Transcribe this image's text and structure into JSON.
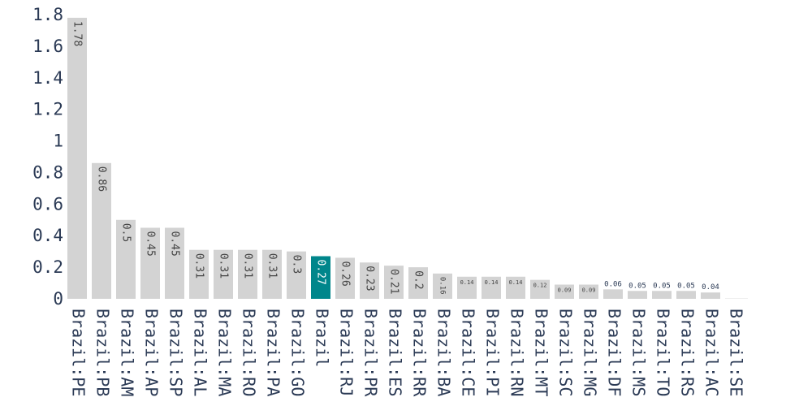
{
  "chart_data": {
    "type": "bar",
    "title": "",
    "xlabel": "",
    "ylabel": "",
    "ylim": [
      0,
      1.8
    ],
    "yticks": [
      0,
      0.2,
      0.4,
      0.6,
      0.8,
      1,
      1.2,
      1.4,
      1.6,
      1.8
    ],
    "ytick_labels": [
      "0",
      "0.2",
      "0.4",
      "0.6",
      "0.8",
      "1",
      "1.2",
      "1.4",
      "1.6",
      "1.8"
    ],
    "grid": false,
    "highlight_category": "Brazil",
    "colors": {
      "default_bar": "#d3d3d3",
      "highlight_bar": "#00868b",
      "axis_text": "#2b3a55"
    },
    "categories": [
      "Brazil:PE",
      "Brazil:PB",
      "Brazil:AM",
      "Brazil:AP",
      "Brazil:SP",
      "Brazil:AL",
      "Brazil:MA",
      "Brazil:RO",
      "Brazil:PA",
      "Brazil:GO",
      "Brazil",
      "Brazil:RJ",
      "Brazil:PR",
      "Brazil:ES",
      "Brazil:RR",
      "Brazil:BA",
      "Brazil:CE",
      "Brazil:PI",
      "Brazil:RN",
      "Brazil:MT",
      "Brazil:SC",
      "Brazil:MG",
      "Brazil:DF",
      "Brazil:MS",
      "Brazil:TO",
      "Brazil:RS",
      "Brazil:AC",
      "Brazil:SE"
    ],
    "values": [
      1.78,
      0.86,
      0.5,
      0.45,
      0.45,
      0.31,
      0.31,
      0.31,
      0.31,
      0.3,
      0.27,
      0.26,
      0.23,
      0.21,
      0.2,
      0.16,
      0.14,
      0.14,
      0.14,
      0.12,
      0.09,
      0.09,
      0.06,
      0.05,
      0.05,
      0.05,
      0.04,
      0.0
    ],
    "value_labels": [
      "1.78",
      "0.86",
      "0.5",
      "0.45",
      "0.45",
      "0.31",
      "0.31",
      "0.31",
      "0.31",
      "0.3",
      "0.27",
      "0.26",
      "0.23",
      "0.21",
      "0.2",
      "0.16",
      "0.14",
      "0.14",
      "0.14",
      "0.12",
      "0.09",
      "0.09",
      "0.06",
      "0.05",
      "0.05",
      "0.05",
      "0.04",
      ""
    ]
  }
}
